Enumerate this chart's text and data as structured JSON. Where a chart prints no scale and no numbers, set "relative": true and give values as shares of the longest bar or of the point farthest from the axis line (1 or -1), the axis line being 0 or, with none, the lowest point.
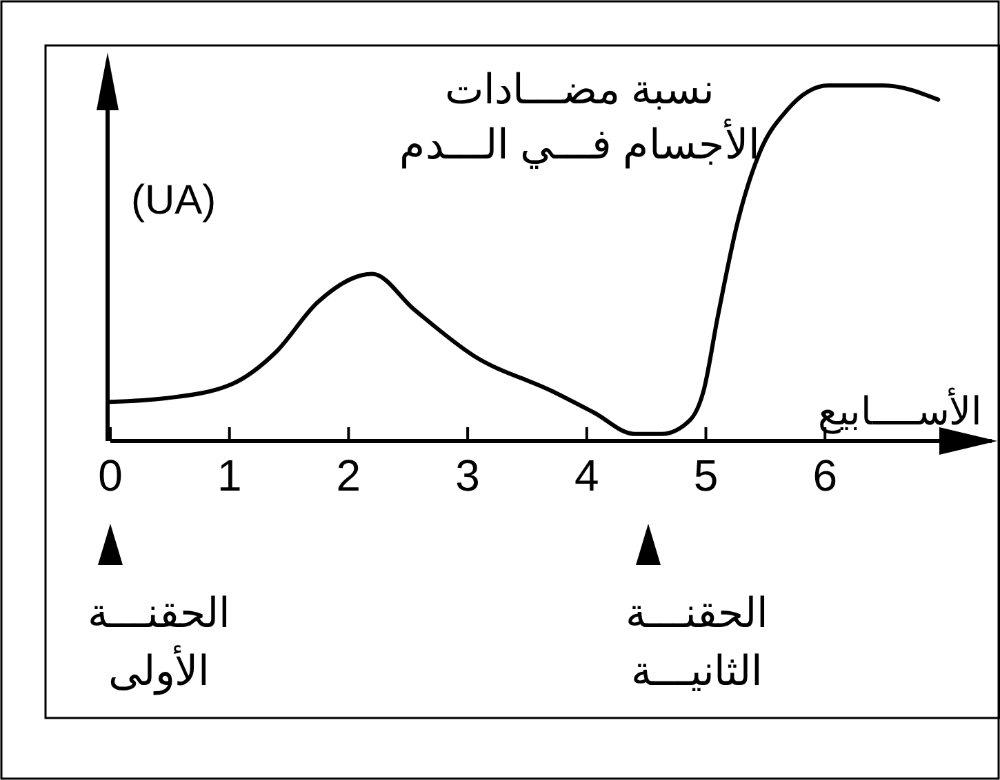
{
  "chart_data": {
    "type": "line",
    "relative": true,
    "ylabel": "نسبة مضـــادات\nالأجسام فـــي الـــدم\n(UA)",
    "xlabel": "الأســــابيع",
    "x": [
      0,
      0.46,
      1.02,
      1.39,
      1.74,
      2.2,
      2.55,
      3.05,
      3.71,
      4.06,
      4.4,
      4.63,
      4.87,
      4.98,
      5.1,
      5.27,
      5.45,
      5.68,
      6.03,
      6.49,
      6.95
    ],
    "series": [
      {
        "color": "#000000",
        "values": [
          0.11,
          0.12,
          0.16,
          0.25,
          0.39,
          0.47,
          0.37,
          0.24,
          0.14,
          0.08,
          0.02,
          0.02,
          0.06,
          0.14,
          0.35,
          0.62,
          0.81,
          0.93,
          1.0,
          1.0,
          0.96
        ]
      }
    ],
    "xlim": [
      0,
      7.4
    ],
    "xticks": [
      0,
      1,
      2,
      3,
      4,
      5,
      6
    ],
    "grid": false,
    "marker": "none",
    "line_style": "solid",
    "annotations": [
      "الحقنـــة\nالأولى",
      "الحقنـــة\nالثانيـــة"
    ]
  }
}
